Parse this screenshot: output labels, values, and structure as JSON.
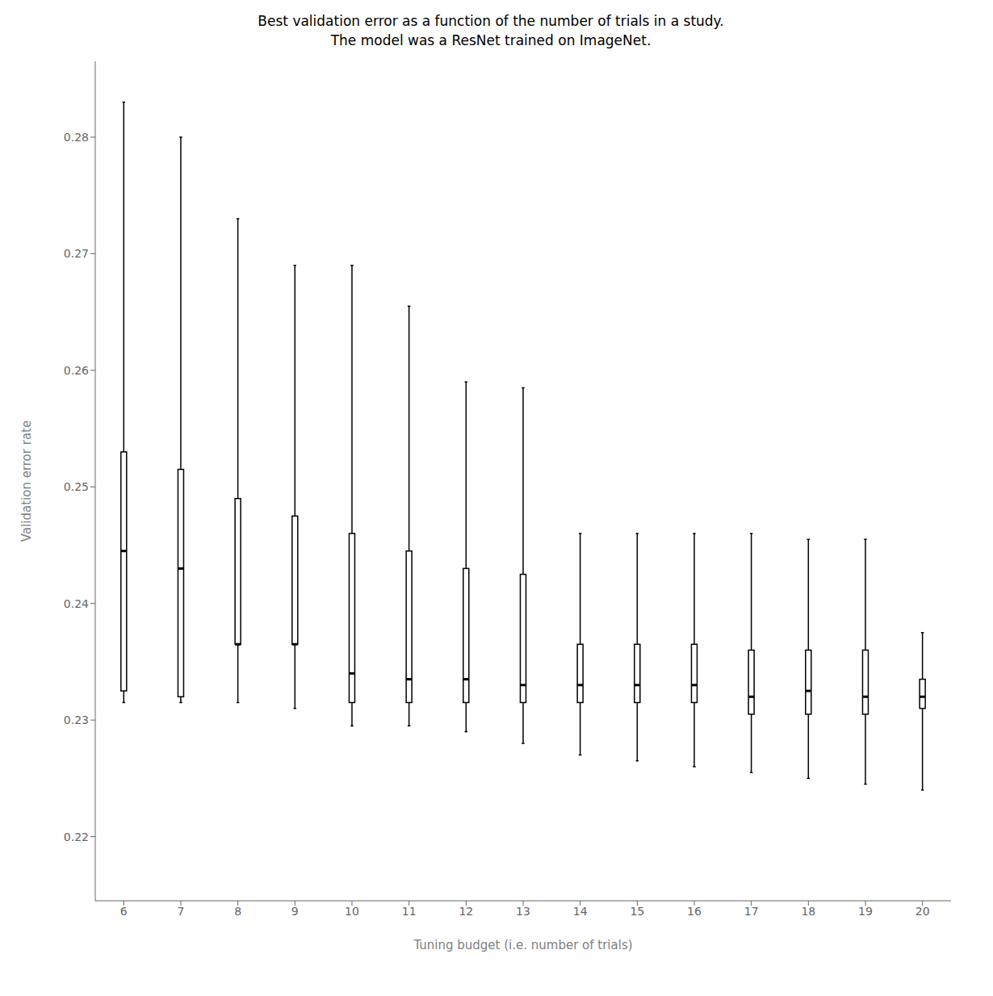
{
  "chart_data": {
    "type": "box",
    "title": "Best validation error as a function of the number of trials in a study.\nThe model was a ResNet trained on ImageNet.",
    "xlabel": "Tuning budget (i.e. number of trials)",
    "ylabel": "Validation error rate",
    "categories": [
      "6",
      "7",
      "8",
      "9",
      "10",
      "11",
      "12",
      "13",
      "14",
      "15",
      "16",
      "17",
      "18",
      "19",
      "20"
    ],
    "q1": [
      0.2325,
      0.232,
      0.2365,
      0.2365,
      0.2315,
      0.2315,
      0.2315,
      0.2315,
      0.2315,
      0.2315,
      0.2315,
      0.2305,
      0.2305,
      0.2305,
      0.231
    ],
    "median": [
      0.2445,
      0.243,
      0.2365,
      0.2365,
      0.234,
      0.2335,
      0.2335,
      0.233,
      0.233,
      0.233,
      0.233,
      0.232,
      0.2325,
      0.232,
      0.232
    ],
    "q3": [
      0.253,
      0.2515,
      0.249,
      0.2475,
      0.246,
      0.2445,
      0.243,
      0.2425,
      0.2365,
      0.2365,
      0.2365,
      0.236,
      0.236,
      0.236,
      0.2335
    ],
    "whislo": [
      0.2315,
      0.2315,
      0.2315,
      0.231,
      0.2295,
      0.2295,
      0.229,
      0.228,
      0.227,
      0.2265,
      0.226,
      0.2255,
      0.225,
      0.2245,
      0.224
    ],
    "whishi": [
      0.283,
      0.28,
      0.273,
      0.269,
      0.269,
      0.2655,
      0.259,
      0.2585,
      0.246,
      0.246,
      0.246,
      0.246,
      0.2455,
      0.2455,
      0.2375
    ],
    "ylim": [
      0.2145,
      0.2865
    ],
    "yticks": [
      0.22,
      0.23,
      0.24,
      0.25,
      0.26,
      0.27,
      0.28
    ],
    "color": "#000000",
    "grid": false
  }
}
